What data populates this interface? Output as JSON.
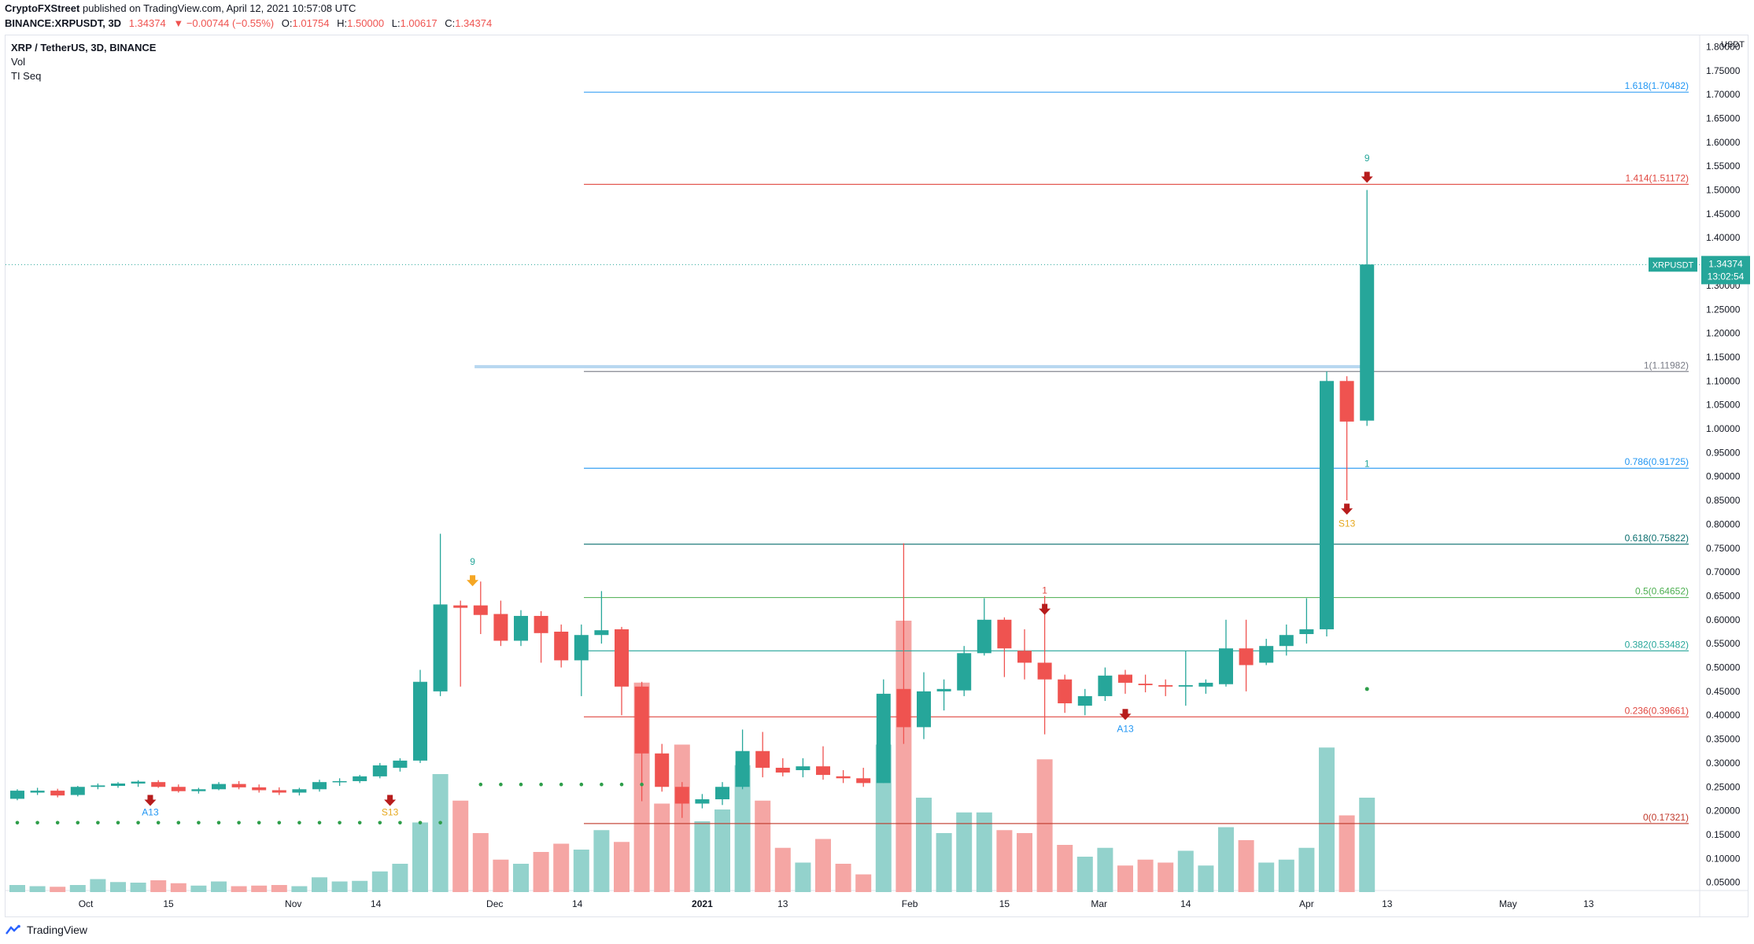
{
  "header": {
    "publisher": "CryptoFXStreet",
    "published_text": "published on TradingView.com, April 12, 2021 10:57:08 UTC",
    "symbol_line": "BINANCE:XRPUSDT, 3D",
    "last": "1.34374",
    "change": "−0.00744 (−0.55%)",
    "ohlc": {
      "o_label": "O:",
      "o": "1.01754",
      "h_label": "H:",
      "h": "1.50000",
      "l_label": "L:",
      "l": "1.00617",
      "c_label": "C:",
      "c": "1.34374"
    }
  },
  "legend": {
    "title": "XRP / TetherUS, 3D, BINANCE",
    "vol": "Vol",
    "tdseq": "TI Seq"
  },
  "footer": {
    "brand": "TradingView"
  },
  "colors": {
    "up": "#26a69a",
    "down": "#ef5350",
    "vol_up": "#93d2cc",
    "vol_down": "#f5a6a4"
  },
  "chart_data": {
    "type": "candlestick",
    "y_axis": {
      "min": 0.0,
      "max": 1.8,
      "unit": "USDT",
      "ticks": [
        "0.05000",
        "0.10000",
        "0.15000",
        "0.20000",
        "0.25000",
        "0.30000",
        "0.35000",
        "0.40000",
        "0.45000",
        "0.50000",
        "0.55000",
        "0.60000",
        "0.65000",
        "0.70000",
        "0.75000",
        "0.80000",
        "0.85000",
        "0.90000",
        "0.95000",
        "1.00000",
        "1.05000",
        "1.10000",
        "1.15000",
        "1.20000",
        "1.25000",
        "1.30000",
        "1.35000",
        "1.40000",
        "1.45000",
        "1.50000",
        "1.55000",
        "1.60000",
        "1.65000",
        "1.70000",
        "1.75000",
        "1.80000"
      ]
    },
    "x_axis": {
      "ticks": [
        {
          "label": "Oct",
          "index": 3.4
        },
        {
          "label": "15",
          "index": 7.5
        },
        {
          "label": "Nov",
          "index": 13.7
        },
        {
          "label": "14",
          "index": 17.8
        },
        {
          "label": "Dec",
          "index": 23.7
        },
        {
          "label": "14",
          "index": 27.8
        },
        {
          "label": "2021",
          "index": 34.0,
          "bold": true
        },
        {
          "label": "13",
          "index": 38.0
        },
        {
          "label": "Feb",
          "index": 44.3
        },
        {
          "label": "15",
          "index": 49.0
        },
        {
          "label": "Mar",
          "index": 53.7
        },
        {
          "label": "14",
          "index": 58.0
        },
        {
          "label": "Apr",
          "index": 64.0
        },
        {
          "label": "13",
          "index": 68.0
        },
        {
          "label": "May",
          "index": 74.0
        },
        {
          "label": "13",
          "index": 78.0
        }
      ]
    },
    "candles": [
      {
        "o": 0.225,
        "h": 0.245,
        "l": 0.222,
        "c": 0.242,
        "v": 0.012
      },
      {
        "o": 0.238,
        "h": 0.248,
        "l": 0.233,
        "c": 0.242,
        "v": 0.01
      },
      {
        "o": 0.242,
        "h": 0.246,
        "l": 0.228,
        "c": 0.232,
        "v": 0.009
      },
      {
        "o": 0.233,
        "h": 0.252,
        "l": 0.23,
        "c": 0.25,
        "v": 0.012
      },
      {
        "o": 0.25,
        "h": 0.257,
        "l": 0.245,
        "c": 0.253,
        "v": 0.022
      },
      {
        "o": 0.252,
        "h": 0.26,
        "l": 0.248,
        "c": 0.257,
        "v": 0.017
      },
      {
        "o": 0.257,
        "h": 0.264,
        "l": 0.25,
        "c": 0.261,
        "v": 0.016
      },
      {
        "o": 0.26,
        "h": 0.264,
        "l": 0.248,
        "c": 0.25,
        "v": 0.02
      },
      {
        "o": 0.25,
        "h": 0.255,
        "l": 0.238,
        "c": 0.241,
        "v": 0.015
      },
      {
        "o": 0.241,
        "h": 0.248,
        "l": 0.236,
        "c": 0.245,
        "v": 0.011
      },
      {
        "o": 0.245,
        "h": 0.26,
        "l": 0.243,
        "c": 0.256,
        "v": 0.018
      },
      {
        "o": 0.256,
        "h": 0.262,
        "l": 0.245,
        "c": 0.249,
        "v": 0.01
      },
      {
        "o": 0.249,
        "h": 0.255,
        "l": 0.238,
        "c": 0.243,
        "v": 0.011
      },
      {
        "o": 0.243,
        "h": 0.249,
        "l": 0.233,
        "c": 0.238,
        "v": 0.012
      },
      {
        "o": 0.238,
        "h": 0.248,
        "l": 0.232,
        "c": 0.245,
        "v": 0.01
      },
      {
        "o": 0.245,
        "h": 0.265,
        "l": 0.24,
        "c": 0.26,
        "v": 0.025
      },
      {
        "o": 0.26,
        "h": 0.268,
        "l": 0.252,
        "c": 0.262,
        "v": 0.018
      },
      {
        "o": 0.262,
        "h": 0.275,
        "l": 0.258,
        "c": 0.272,
        "v": 0.019
      },
      {
        "o": 0.272,
        "h": 0.3,
        "l": 0.268,
        "c": 0.295,
        "v": 0.035
      },
      {
        "o": 0.29,
        "h": 0.31,
        "l": 0.282,
        "c": 0.305,
        "v": 0.048
      },
      {
        "o": 0.305,
        "h": 0.495,
        "l": 0.3,
        "c": 0.47,
        "v": 0.118
      },
      {
        "o": 0.45,
        "h": 0.78,
        "l": 0.44,
        "c": 0.632,
        "v": 0.2
      },
      {
        "o": 0.63,
        "h": 0.64,
        "l": 0.46,
        "c": 0.625,
        "v": 0.155
      },
      {
        "o": 0.63,
        "h": 0.68,
        "l": 0.57,
        "c": 0.61,
        "v": 0.1
      },
      {
        "o": 0.612,
        "h": 0.64,
        "l": 0.545,
        "c": 0.556,
        "v": 0.055
      },
      {
        "o": 0.556,
        "h": 0.62,
        "l": 0.545,
        "c": 0.608,
        "v": 0.048
      },
      {
        "o": 0.608,
        "h": 0.618,
        "l": 0.51,
        "c": 0.572,
        "v": 0.068
      },
      {
        "o": 0.575,
        "h": 0.59,
        "l": 0.5,
        "c": 0.515,
        "v": 0.082
      },
      {
        "o": 0.515,
        "h": 0.59,
        "l": 0.44,
        "c": 0.568,
        "v": 0.072
      },
      {
        "o": 0.568,
        "h": 0.66,
        "l": 0.55,
        "c": 0.578,
        "v": 0.105
      },
      {
        "o": 0.58,
        "h": 0.585,
        "l": 0.4,
        "c": 0.46,
        "v": 0.085
      },
      {
        "o": 0.46,
        "h": 0.47,
        "l": 0.22,
        "c": 0.32,
        "v": 0.355
      },
      {
        "o": 0.32,
        "h": 0.34,
        "l": 0.24,
        "c": 0.25,
        "v": 0.15
      },
      {
        "o": 0.25,
        "h": 0.26,
        "l": 0.185,
        "c": 0.215,
        "v": 0.25
      },
      {
        "o": 0.215,
        "h": 0.235,
        "l": 0.205,
        "c": 0.224,
        "v": 0.12
      },
      {
        "o": 0.224,
        "h": 0.26,
        "l": 0.212,
        "c": 0.25,
        "v": 0.14
      },
      {
        "o": 0.25,
        "h": 0.37,
        "l": 0.245,
        "c": 0.325,
        "v": 0.215
      },
      {
        "o": 0.325,
        "h": 0.365,
        "l": 0.27,
        "c": 0.29,
        "v": 0.155
      },
      {
        "o": 0.29,
        "h": 0.31,
        "l": 0.272,
        "c": 0.28,
        "v": 0.075
      },
      {
        "o": 0.285,
        "h": 0.31,
        "l": 0.27,
        "c": 0.293,
        "v": 0.05
      },
      {
        "o": 0.293,
        "h": 0.335,
        "l": 0.265,
        "c": 0.275,
        "v": 0.09
      },
      {
        "o": 0.272,
        "h": 0.285,
        "l": 0.258,
        "c": 0.268,
        "v": 0.048
      },
      {
        "o": 0.268,
        "h": 0.29,
        "l": 0.25,
        "c": 0.258,
        "v": 0.03
      },
      {
        "o": 0.258,
        "h": 0.475,
        "l": 0.258,
        "c": 0.445,
        "v": 0.25
      },
      {
        "o": 0.455,
        "h": 0.76,
        "l": 0.34,
        "c": 0.375,
        "v": 0.46
      },
      {
        "o": 0.375,
        "h": 0.49,
        "l": 0.35,
        "c": 0.45,
        "v": 0.16
      },
      {
        "o": 0.45,
        "h": 0.475,
        "l": 0.41,
        "c": 0.455,
        "v": 0.1
      },
      {
        "o": 0.452,
        "h": 0.545,
        "l": 0.44,
        "c": 0.53,
        "v": 0.135
      },
      {
        "o": 0.53,
        "h": 0.645,
        "l": 0.525,
        "c": 0.6,
        "v": 0.135
      },
      {
        "o": 0.6,
        "h": 0.605,
        "l": 0.48,
        "c": 0.54,
        "v": 0.105
      },
      {
        "o": 0.535,
        "h": 0.58,
        "l": 0.475,
        "c": 0.51,
        "v": 0.1
      },
      {
        "o": 0.51,
        "h": 0.65,
        "l": 0.36,
        "c": 0.475,
        "v": 0.225
      },
      {
        "o": 0.475,
        "h": 0.485,
        "l": 0.405,
        "c": 0.425,
        "v": 0.08
      },
      {
        "o": 0.42,
        "h": 0.455,
        "l": 0.4,
        "c": 0.44,
        "v": 0.06
      },
      {
        "o": 0.44,
        "h": 0.5,
        "l": 0.43,
        "c": 0.483,
        "v": 0.075
      },
      {
        "o": 0.485,
        "h": 0.495,
        "l": 0.445,
        "c": 0.468,
        "v": 0.045
      },
      {
        "o": 0.466,
        "h": 0.485,
        "l": 0.448,
        "c": 0.463,
        "v": 0.055
      },
      {
        "o": 0.463,
        "h": 0.475,
        "l": 0.44,
        "c": 0.46,
        "v": 0.05
      },
      {
        "o": 0.46,
        "h": 0.535,
        "l": 0.42,
        "c": 0.463,
        "v": 0.07
      },
      {
        "o": 0.46,
        "h": 0.475,
        "l": 0.445,
        "c": 0.468,
        "v": 0.045
      },
      {
        "o": 0.465,
        "h": 0.6,
        "l": 0.46,
        "c": 0.54,
        "v": 0.11
      },
      {
        "o": 0.54,
        "h": 0.6,
        "l": 0.45,
        "c": 0.505,
        "v": 0.088
      },
      {
        "o": 0.51,
        "h": 0.56,
        "l": 0.505,
        "c": 0.545,
        "v": 0.05
      },
      {
        "o": 0.545,
        "h": 0.59,
        "l": 0.525,
        "c": 0.568,
        "v": 0.055
      },
      {
        "o": 0.57,
        "h": 0.645,
        "l": 0.55,
        "c": 0.58,
        "v": 0.075
      },
      {
        "o": 0.58,
        "h": 1.12,
        "l": 0.565,
        "c": 1.1,
        "v": 0.245
      },
      {
        "o": 1.1,
        "h": 1.11,
        "l": 0.85,
        "c": 1.015,
        "v": 0.13
      },
      {
        "o": 1.017,
        "h": 1.5,
        "l": 1.006,
        "c": 1.344,
        "v": 0.16
      }
    ],
    "fib_levels": [
      {
        "ratio": "1.618",
        "value": 1.70482,
        "label": "1.618(1.70482)",
        "color": "#2196f3"
      },
      {
        "ratio": "1.414",
        "value": 1.51172,
        "label": "1.414(1.51172)",
        "color": "#e0463f"
      },
      {
        "ratio": "1",
        "value": 1.11982,
        "label": "1(1.11982)",
        "color": "#787b86"
      },
      {
        "ratio": "0.786",
        "value": 0.91725,
        "label": "0.786(0.91725)",
        "color": "#2196f3"
      },
      {
        "ratio": "0.618",
        "value": 0.75822,
        "label": "0.618(0.75822)",
        "color": "#0a6e6e"
      },
      {
        "ratio": "0.5",
        "value": 0.64652,
        "label": "0.5(0.64652)",
        "color": "#4caf50"
      },
      {
        "ratio": "0.382",
        "value": 0.53482,
        "label": "0.382(0.53482)",
        "color": "#26a69a"
      },
      {
        "ratio": "0.236",
        "value": 0.39661,
        "label": "0.236(0.39661)",
        "color": "#e0463f"
      },
      {
        "ratio": "0",
        "value": 0.17321,
        "label": "0(0.17321)",
        "color": "#c0392b"
      }
    ],
    "horizontal_band": {
      "value": 1.13,
      "from_index": 22.7,
      "to_index": 67.0,
      "color": "#b7d7f0"
    },
    "price_label": {
      "symbol": "XRPUSDT",
      "value": "1.34374",
      "countdown": "13:02:54",
      "value_num": 1.34374
    },
    "markers": [
      {
        "text": "A13",
        "index": 6.6,
        "y": 0.19,
        "color": "#2196f3",
        "arrow_y": 0.22,
        "arrow_color": "#b71c1c"
      },
      {
        "text": "S13",
        "index": 18.5,
        "y": 0.19,
        "color": "#e6a81e",
        "arrow_y": 0.22,
        "arrow_color": "#b71c1c"
      },
      {
        "text": "9",
        "index": 22.6,
        "y": 0.715,
        "color": "#26a69a",
        "arrow_y": 0.68,
        "arrow_color": "#f5a623"
      },
      {
        "text": "1",
        "index": 51.0,
        "y": 0.655,
        "color": "#e0463f",
        "arrow_y": 0.62,
        "arrow_color": "#b71c1c"
      },
      {
        "text": "A13",
        "index": 55.0,
        "y": 0.365,
        "color": "#2196f3",
        "arrow_y": 0.4,
        "arrow_color": "#b71c1c"
      },
      {
        "text": "S13",
        "index": 66.0,
        "y": 0.795,
        "color": "#e6a81e",
        "arrow_y": 0.83,
        "arrow_color": "#b71c1c"
      },
      {
        "text": "1",
        "index": 67.0,
        "y": 0.92,
        "color": "#26a69a",
        "arrow_y": null,
        "arrow_color": null
      },
      {
        "text": "9",
        "index": 67.0,
        "y": 1.56,
        "color": "#26a69a",
        "arrow_y": 1.525,
        "arrow_color": "#b71c1c"
      }
    ],
    "dots": [
      {
        "from_index": 0,
        "to_index": 21.5,
        "y": 0.175,
        "step": 1
      },
      {
        "from_index": 23.0,
        "to_index": 31.5,
        "y": 0.255,
        "step": 1
      },
      {
        "single_index": 67.0,
        "y": 0.455
      }
    ]
  }
}
